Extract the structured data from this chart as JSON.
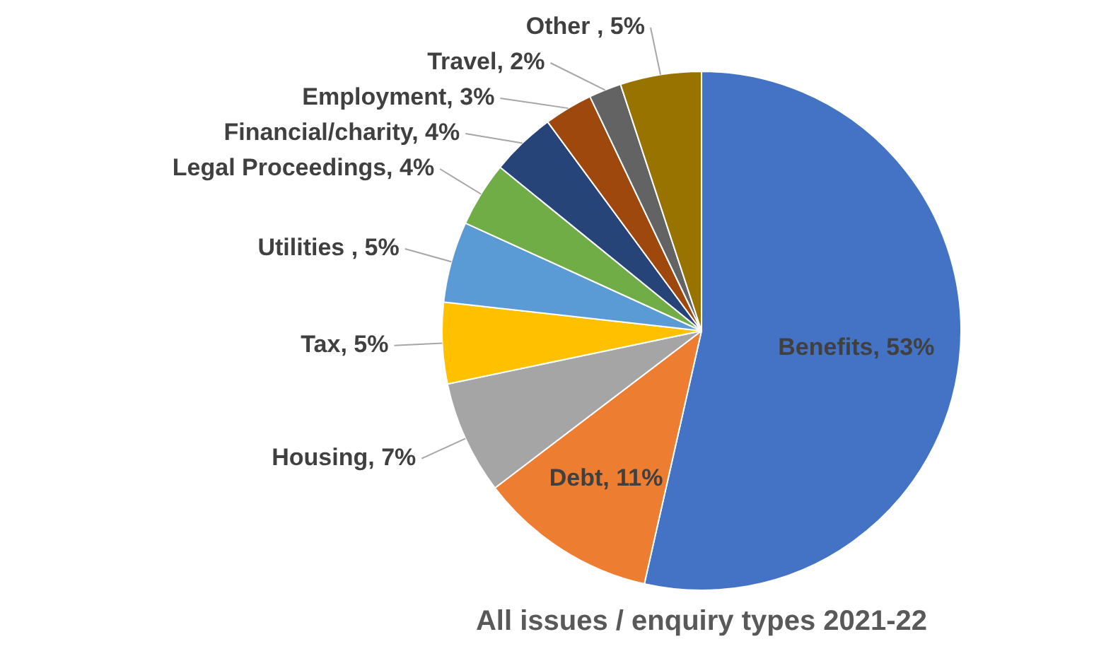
{
  "chart_data": {
    "type": "pie",
    "title": "All issues / enquiry types 2021-22",
    "categories": [
      "Benefits",
      "Debt",
      "Housing",
      "Tax",
      "Utilities ",
      "Legal Proceedings",
      "Financial/charity",
      "Employment",
      "Travel",
      "Other "
    ],
    "values": [
      53,
      11,
      7,
      5,
      5,
      4,
      4,
      3,
      2,
      5
    ],
    "colors": [
      "#4472c4",
      "#ed7d31",
      "#a5a5a5",
      "#ffc000",
      "#5b9bd5",
      "#70ad47",
      "#264478",
      "#9e480e",
      "#636363",
      "#997300"
    ],
    "value_labels": [
      "53%",
      "11%",
      "7%",
      "5%",
      "5%",
      "4%",
      "4%",
      "3%",
      "2%",
      "5%"
    ],
    "legend": false
  }
}
